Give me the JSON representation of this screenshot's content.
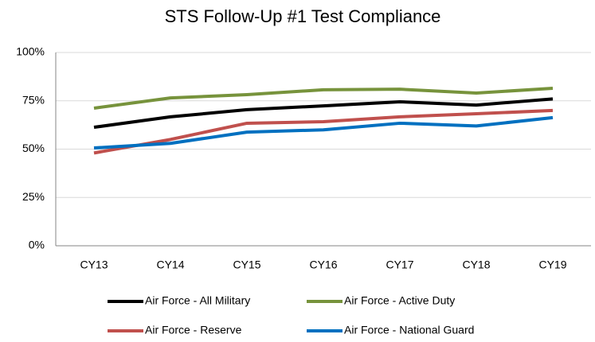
{
  "chart_data": {
    "type": "line",
    "title": "STS Follow-Up #1 Test Compliance",
    "categories": [
      "CY13",
      "CY14",
      "CY15",
      "CY16",
      "CY17",
      "CY18",
      "CY19"
    ],
    "series": [
      {
        "name": "Air Force - All Military",
        "color": "#000000",
        "values": [
          61.3,
          66.7,
          70.4,
          72.4,
          74.5,
          72.8,
          76
        ]
      },
      {
        "name": "Air Force - Active Duty",
        "color": "#77933c",
        "values": [
          71.2,
          76.5,
          78.2,
          80.7,
          81,
          79,
          81.5
        ]
      },
      {
        "name": "Air Force - Reserve",
        "color": "#c0504d",
        "values": [
          48,
          55,
          63.4,
          64.2,
          66.7,
          68.3,
          70
        ]
      },
      {
        "name": "Air Force - National Guard",
        "color": "#0070c0",
        "values": [
          50.6,
          53,
          58.8,
          60,
          63.4,
          62,
          66.3
        ]
      }
    ],
    "ylim": [
      0,
      100
    ],
    "yticks": [
      {
        "value": 0,
        "label": "0%"
      },
      {
        "value": 25,
        "label": "25%"
      },
      {
        "value": 50,
        "label": "50%"
      },
      {
        "value": 75,
        "label": "75%"
      },
      {
        "value": 100,
        "label": "100%"
      }
    ],
    "grid": true
  }
}
